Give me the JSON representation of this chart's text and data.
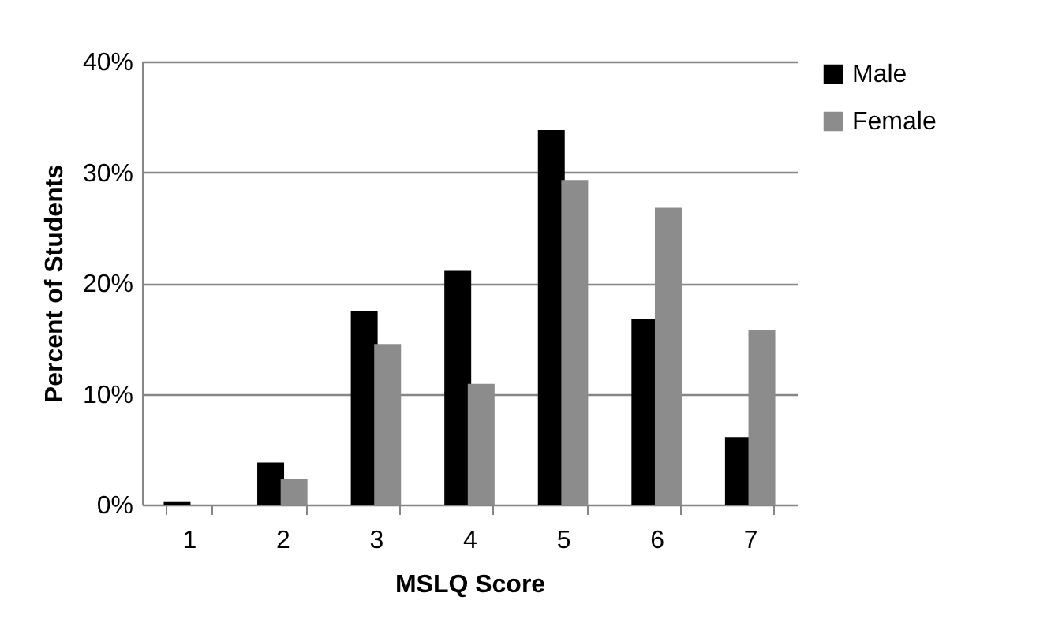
{
  "chart_data": {
    "type": "bar",
    "xlabel": "MSLQ Score",
    "ylabel": "Percent of Students",
    "categories": [
      "1",
      "2",
      "3",
      "4",
      "5",
      "6",
      "7"
    ],
    "series": [
      {
        "name": "Male",
        "color": "#000000",
        "values": [
          0.3,
          3.8,
          17.5,
          21.1,
          33.8,
          16.8,
          6.1
        ]
      },
      {
        "name": "Female",
        "color": "#8c8c8c",
        "values": [
          0,
          2.3,
          14.5,
          10.9,
          29.3,
          26.8,
          15.8
        ]
      }
    ],
    "ylim": [
      0,
      40
    ],
    "yticks": [
      {
        "value": 0,
        "label": "0%"
      },
      {
        "value": 10,
        "label": "10%"
      },
      {
        "value": 20,
        "label": "20%"
      },
      {
        "value": 30,
        "label": "30%"
      },
      {
        "value": 40,
        "label": "40%"
      }
    ],
    "grid": "y",
    "legend": "right"
  }
}
